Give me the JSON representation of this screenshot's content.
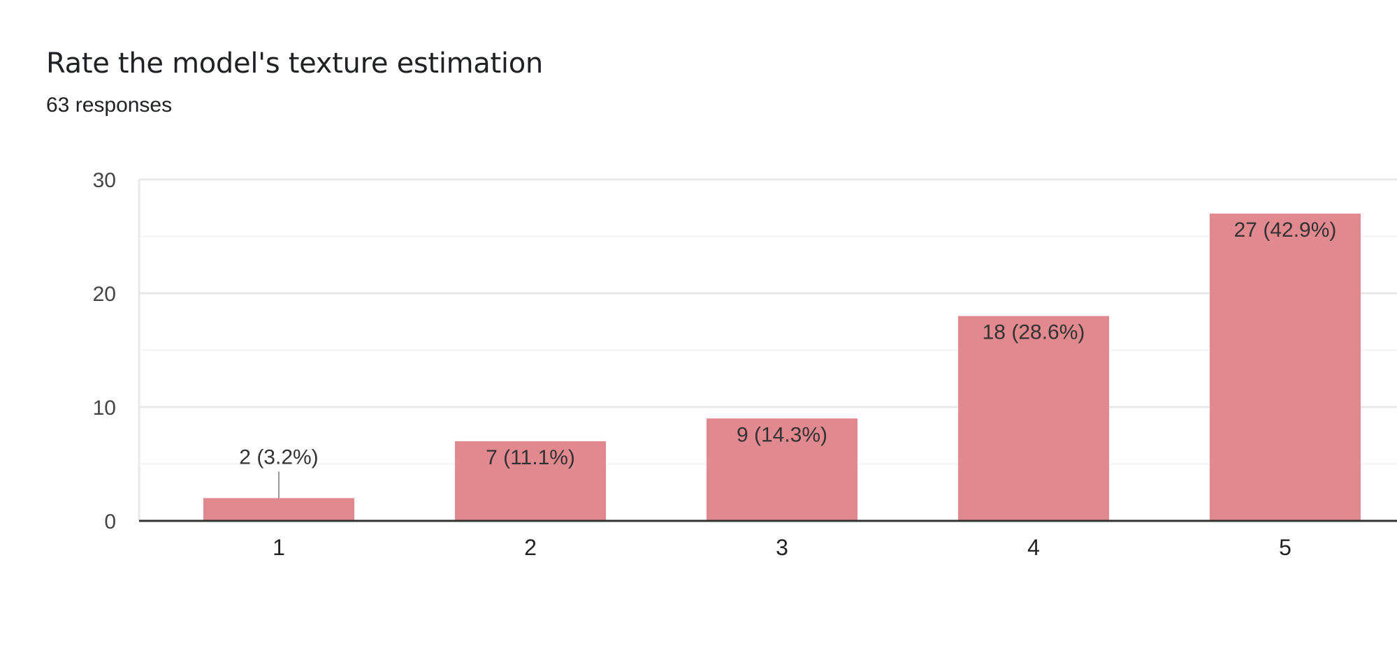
{
  "header": {
    "title": "Rate the model's texture estimation",
    "responses": "63 responses"
  },
  "colors": {
    "bar": "#e0898e",
    "gridline": "#e8e8e8",
    "minor_gridline": "#f3f3f3",
    "axis": "#333333",
    "text": "#222222",
    "tick_text": "#444444",
    "leader": "#999999"
  },
  "chart_data": {
    "type": "bar",
    "categories": [
      "1",
      "2",
      "3",
      "4",
      "5"
    ],
    "values": [
      2,
      7,
      9,
      18,
      27
    ],
    "data_labels": [
      "2 (3.2%)",
      "7 (11.1%)",
      "9 (14.3%)",
      "18 (28.6%)",
      "27 (42.9%)"
    ],
    "y_ticks": [
      0,
      10,
      20,
      30
    ],
    "ylim": [
      0,
      30
    ],
    "minor_gridlines": true,
    "grid": true,
    "legend": "none"
  }
}
